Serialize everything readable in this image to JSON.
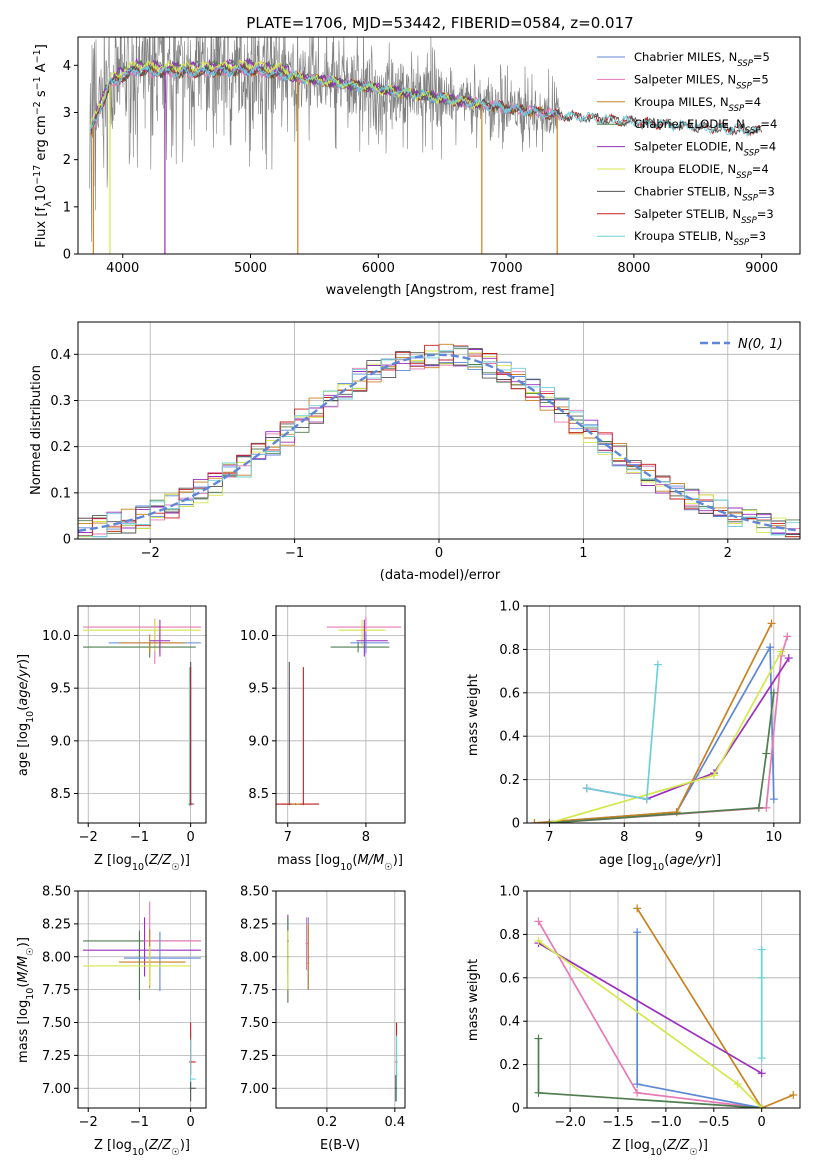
{
  "title": "PLATE=1706, MJD=53442, FIBERID=0584, z=0.017",
  "colors": {
    "Chabrier MILES": "#5f87d8",
    "Salpeter MILES": "#e879b4",
    "Kroupa MILES": "#c9811f",
    "Chabrier ELODIE": "#4f7d4f",
    "Salpeter ELODIE": "#9b2fbf",
    "Kroupa ELODIE": "#d4e84a",
    "Chabrier STELIB": "#555555",
    "Salpeter STELIB": "#c81e1e",
    "Kroupa STELIB": "#6fd0d8"
  },
  "legend_entries": [
    "Chabrier MILES, N$_{SSP}$=5",
    "Salpeter MILES, N$_{SSP}$=5",
    "Kroupa MILES, N$_{SSP}$=4",
    "Chabrier ELODIE, N$_{SSP}$=4",
    "Salpeter ELODIE, N$_{SSP}$=4",
    "Kroupa ELODIE, N$_{SSP}$=4",
    "Chabrier STELIB, N$_{SSP}$=3",
    "Salpeter STELIB, N$_{SSP}$=3",
    "Kroupa STELIB, N$_{SSP}$=3"
  ],
  "legend_display": [
    [
      "Chabrier MILES, N",
      "SSP",
      "=5"
    ],
    [
      "Salpeter MILES, N",
      "SSP",
      "=5"
    ],
    [
      "Kroupa MILES, N",
      "SSP",
      "=4"
    ],
    [
      "Chabrier ELODIE, N",
      "SSP",
      "=4"
    ],
    [
      "Salpeter ELODIE, N",
      "SSP",
      "=4"
    ],
    [
      "Kroupa ELODIE, N",
      "SSP",
      "=4"
    ],
    [
      "Chabrier STELIB, N",
      "SSP",
      "=3"
    ],
    [
      "Salpeter STELIB, N",
      "SSP",
      "=3"
    ],
    [
      "Kroupa STELIB, N",
      "SSP",
      "=3"
    ]
  ],
  "chart_data": [
    {
      "id": "spectrum",
      "type": "line",
      "title": "PLATE=1706, MJD=53442, FIBERID=0584, z=0.017",
      "xlabel": "wavelength [Angstrom, rest frame]",
      "ylabel": "Flux [f_λ 10^-17 erg cm^-2 s^-1 A^-1]",
      "xlim": [
        3650,
        9300
      ],
      "ylim": [
        0,
        4.6
      ],
      "xticks": [
        4000,
        5000,
        6000,
        7000,
        8000,
        9000
      ],
      "yticks": [
        0,
        1,
        2,
        3,
        4
      ],
      "data_series": {
        "name": "data",
        "color": "#808080",
        "x_range": [
          3740,
          7420
        ]
      },
      "model_envelope": {
        "x": [
          3740,
          3900,
          4100,
          4300,
          4500,
          5000,
          5500,
          6000,
          6500,
          7000,
          7400,
          8000,
          8500,
          9000
        ],
        "y": [
          2.5,
          3.6,
          3.9,
          3.85,
          3.85,
          3.9,
          3.7,
          3.5,
          3.3,
          3.1,
          2.95,
          2.8,
          2.7,
          2.6
        ]
      },
      "legend_placement": "upper right"
    },
    {
      "id": "residuals",
      "type": "step",
      "xlabel": "(data-model)/error",
      "ylabel": "Normed distribution",
      "xlim": [
        -2.5,
        2.5
      ],
      "ylim": [
        0,
        0.47
      ],
      "xticks": [
        -2,
        -1,
        0,
        1,
        2
      ],
      "yticks": [
        0.0,
        0.1,
        0.2,
        0.3,
        0.4
      ],
      "reference": {
        "name": "N(0,1)",
        "style": "dashed",
        "color": "#5f87d8"
      },
      "grid": true,
      "legend_placement": "upper right"
    },
    {
      "id": "age_vs_Z",
      "type": "scatter",
      "xlabel": "Z [log10(Z/Z_sun)]",
      "ylabel": "age [log10(age/yr)]",
      "xlim": [
        -2.2,
        0.3
      ],
      "ylim": [
        8.22,
        10.28
      ],
      "xticks": [
        -2,
        -1,
        0
      ],
      "yticks": [
        8.5,
        9.0,
        9.5,
        10.0
      ],
      "grid": true
    },
    {
      "id": "age_vs_mass",
      "type": "scatter",
      "xlabel": "mass [log10(M/M_sun)]",
      "xlim": [
        6.85,
        8.5
      ],
      "ylim": [
        8.22,
        10.28
      ],
      "xticks": [
        7,
        8
      ],
      "yticks": [
        8.5,
        9.0,
        9.5,
        10.0
      ],
      "grid": true
    },
    {
      "id": "massweight_vs_age",
      "type": "line",
      "xlabel": "age [log10(age/yr)]",
      "ylabel": "mass weight",
      "xlim": [
        6.7,
        10.35
      ],
      "ylim": [
        0,
        1
      ],
      "xticks": [
        7,
        8,
        9,
        10
      ],
      "yticks": [
        0.0,
        0.2,
        0.4,
        0.6,
        0.8,
        1.0
      ],
      "grid": true,
      "series": [
        {
          "name": "Chabrier MILES",
          "x": [
            6.8,
            8.7,
            9.95,
            10.0
          ],
          "y": [
            0.0,
            0.05,
            0.81,
            0.11
          ]
        },
        {
          "name": "Kroupa MILES",
          "x": [
            6.8,
            8.7,
            9.97
          ],
          "y": [
            0.0,
            0.05,
            0.92
          ]
        },
        {
          "name": "Salpeter MILES",
          "x": [
            7.0,
            9.9,
            10.1,
            10.18
          ],
          "y": [
            0.0,
            0.07,
            0.77,
            0.86
          ]
        },
        {
          "name": "Salpeter ELODIE",
          "x": [
            7.5,
            8.3,
            9.2,
            10.2
          ],
          "y": [
            0.16,
            0.11,
            0.23,
            0.76
          ]
        },
        {
          "name": "Kroupa ELODIE",
          "x": [
            7.0,
            9.2,
            10.1
          ],
          "y": [
            0.0,
            0.22,
            0.79
          ]
        },
        {
          "name": "Chabrier ELODIE",
          "x": [
            7.0,
            9.8,
            9.9,
            10.0
          ],
          "y": [
            0.0,
            0.07,
            0.32,
            0.6
          ]
        },
        {
          "name": "Kroupa STELIB",
          "x": [
            7.5,
            8.3,
            8.45
          ],
          "y": [
            0.16,
            0.11,
            0.73
          ]
        }
      ]
    },
    {
      "id": "mass_vs_Z",
      "type": "scatter",
      "xlabel": "Z [log10(Z/Z_sun)]",
      "ylabel": "mass [log10(M/M_sun)]",
      "xlim": [
        -2.2,
        0.3
      ],
      "ylim": [
        6.85,
        8.5
      ],
      "xticks": [
        -2,
        -1,
        0
      ],
      "yticks": [
        7.0,
        7.25,
        7.5,
        7.75,
        8.0,
        8.25,
        8.5
      ],
      "grid": true
    },
    {
      "id": "mass_vs_EBV",
      "type": "scatter",
      "xlabel": "E(B-V)",
      "xlim": [
        0.05,
        0.43
      ],
      "ylim": [
        6.85,
        8.5
      ],
      "xticks": [
        0.2,
        0.4
      ],
      "yticks": [
        7.0,
        7.25,
        7.5,
        7.75,
        8.0,
        8.25,
        8.5
      ],
      "grid": true
    },
    {
      "id": "massweight_vs_Z",
      "type": "line",
      "xlabel": "Z [log10(Z/Z_sun)]",
      "ylabel": "mass weight",
      "xlim": [
        -2.45,
        0.4
      ],
      "ylim": [
        0,
        1
      ],
      "xticks": [
        -2.0,
        -1.5,
        -1.0,
        -0.5,
        0.0
      ],
      "yticks": [
        0.0,
        0.2,
        0.4,
        0.6,
        0.8,
        1.0
      ],
      "grid": true,
      "series": [
        {
          "name": "Salpeter MILES",
          "x": [
            -2.33,
            -1.3,
            0.0
          ],
          "y": [
            0.86,
            0.07,
            0.0
          ]
        },
        {
          "name": "Kroupa MILES",
          "x": [
            -1.3,
            0.0,
            0.33
          ],
          "y": [
            0.92,
            0.0,
            0.06
          ]
        },
        {
          "name": "Chabrier MILES",
          "x": [
            -1.3,
            -1.3,
            0.0
          ],
          "y": [
            0.81,
            0.11,
            0.0
          ]
        },
        {
          "name": "Chabrier ELODIE",
          "x": [
            -2.33,
            -2.33,
            0.0
          ],
          "y": [
            0.32,
            0.07,
            0.0
          ]
        },
        {
          "name": "Salpeter ELODIE",
          "x": [
            -2.33,
            0.0
          ],
          "y": [
            0.76,
            0.16
          ]
        },
        {
          "name": "Kroupa ELODIE",
          "x": [
            -2.33,
            -0.25,
            0.0
          ],
          "y": [
            0.77,
            0.11,
            0.0
          ]
        },
        {
          "name": "Kroupa STELIB",
          "x": [
            0.0,
            0.0,
            0.0
          ],
          "y": [
            0.73,
            0.6,
            0.23
          ]
        }
      ]
    }
  ]
}
